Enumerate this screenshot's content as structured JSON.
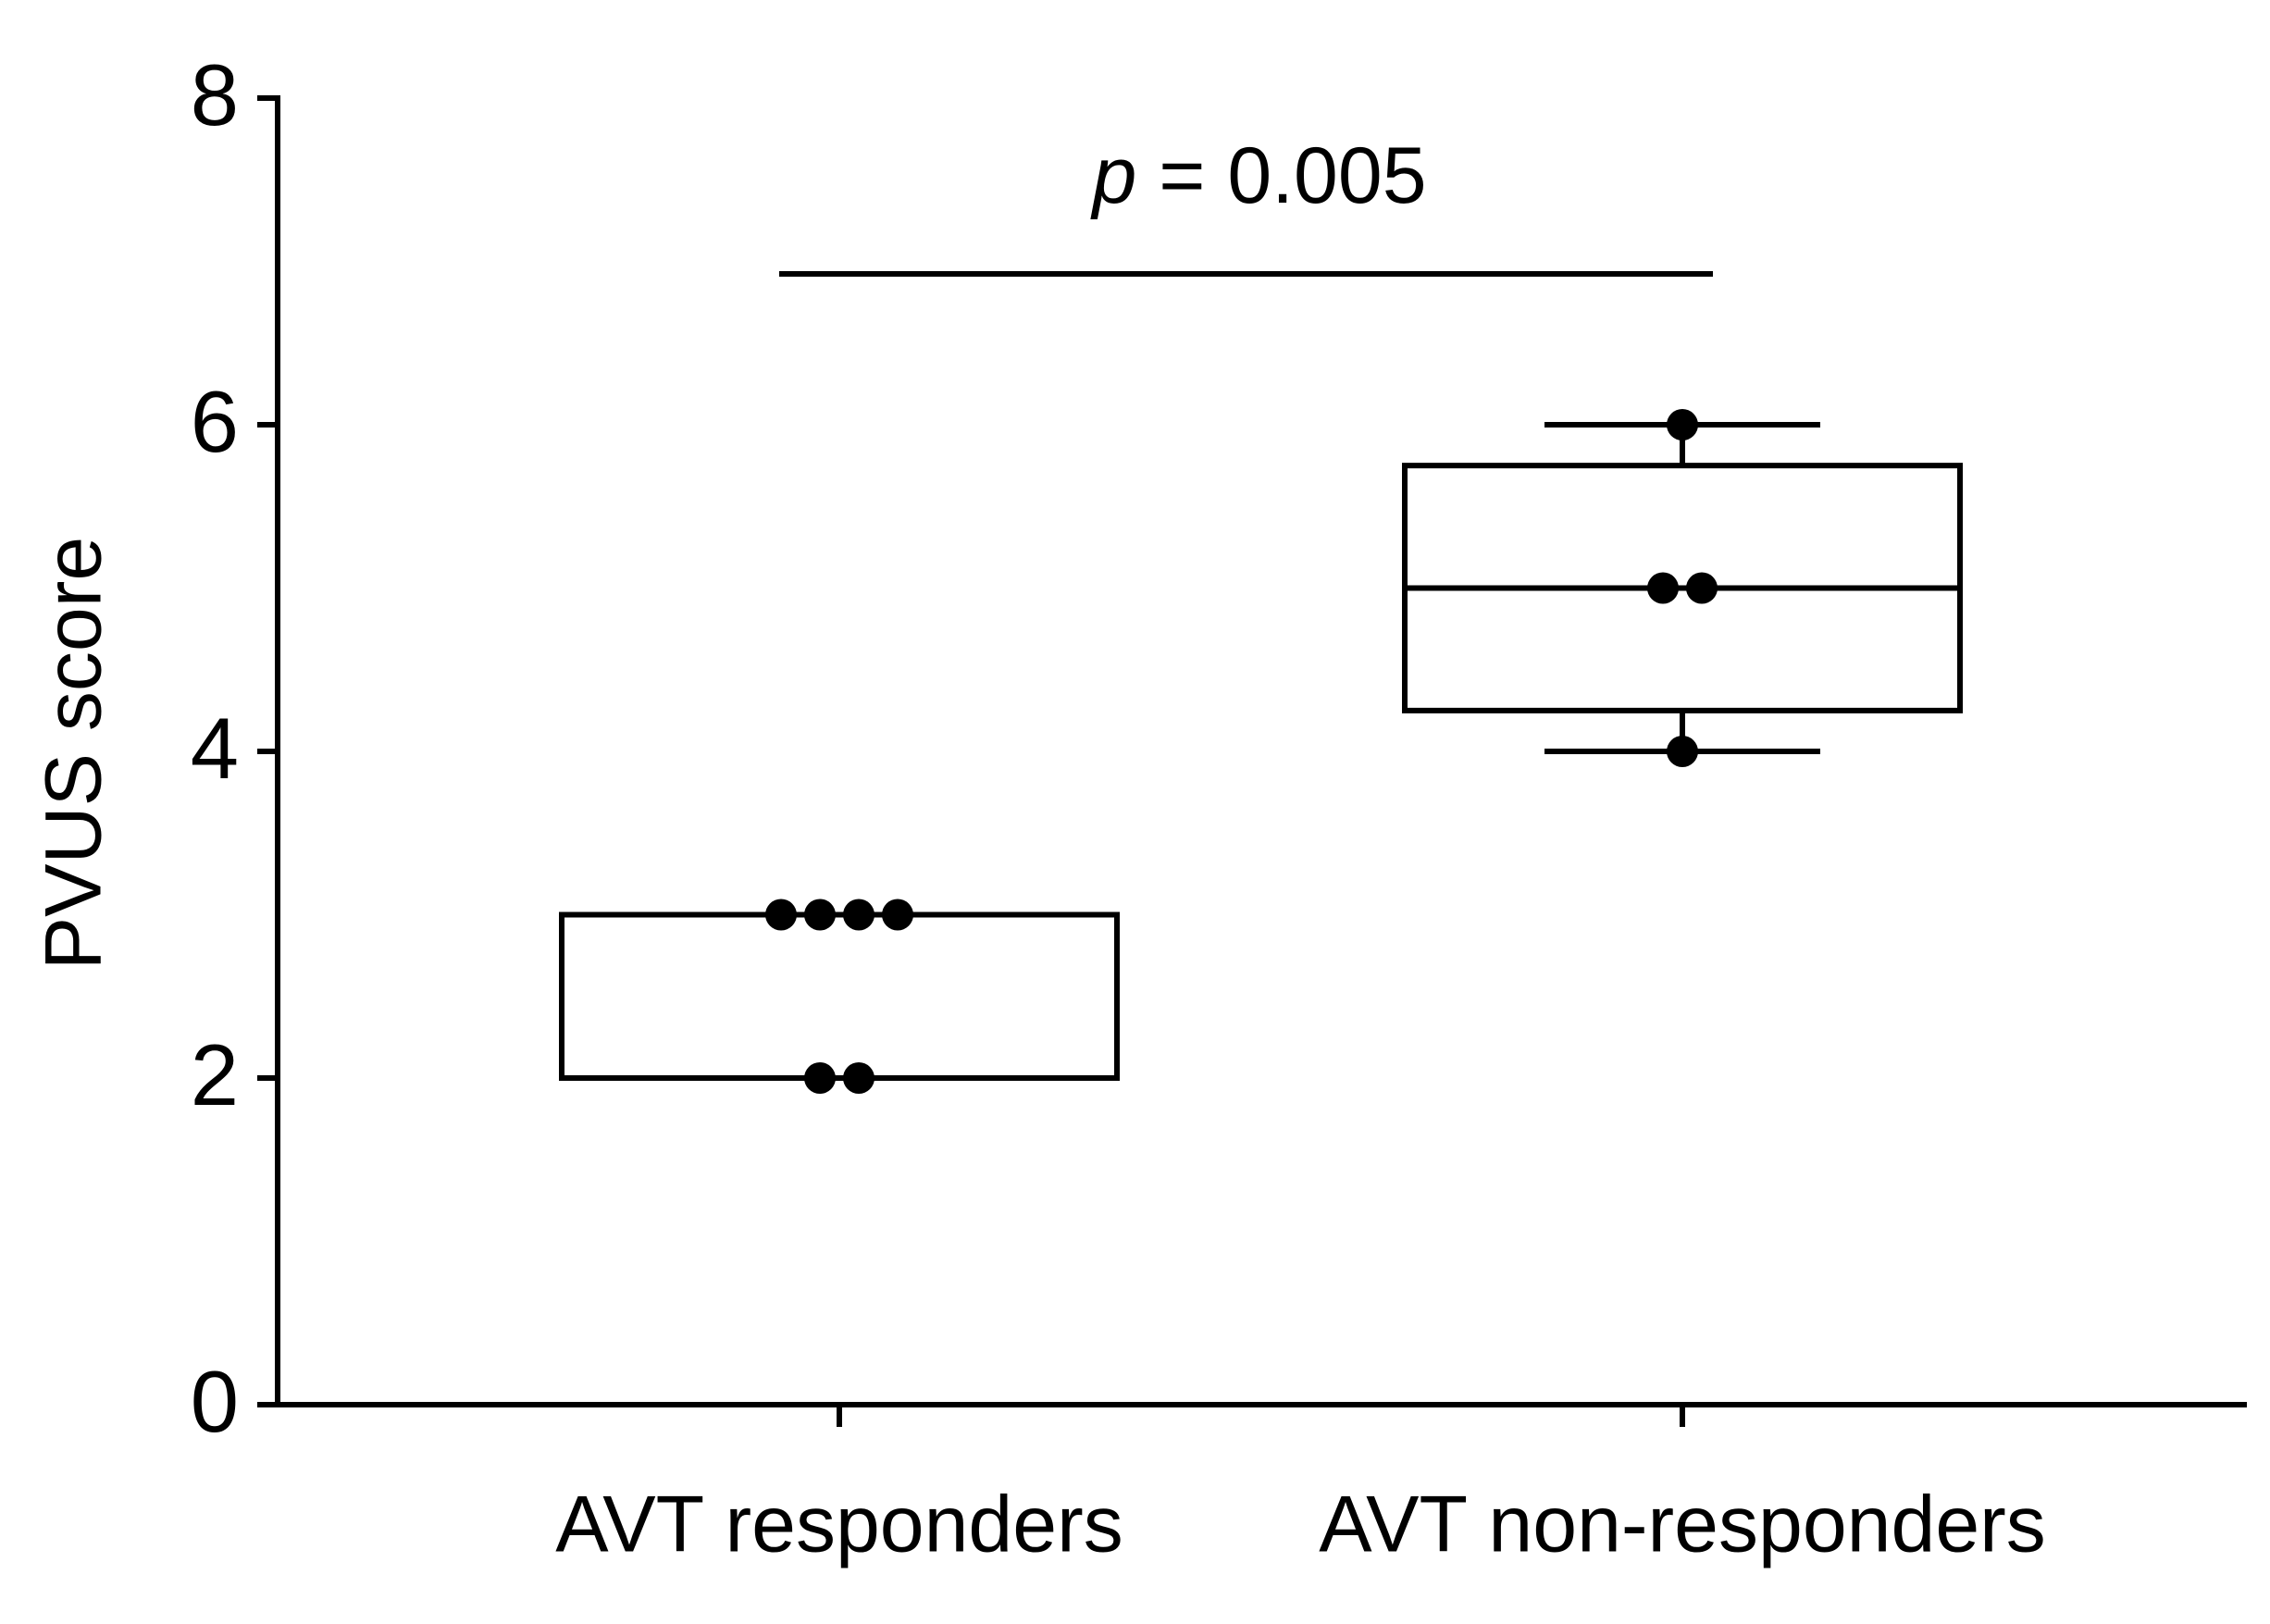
{
  "chart_data": {
    "type": "box",
    "ylabel": "PVUS score",
    "categories": [
      "AVT responders",
      "AVT non-responders"
    ],
    "boxes": [
      {
        "min": 2,
        "q1": 2,
        "median": 3,
        "q3": 3,
        "max": 3,
        "points": [
          3,
          3,
          3,
          3,
          2,
          2
        ]
      },
      {
        "min": 4,
        "q1": 4.25,
        "median": 5,
        "q3": 5.75,
        "max": 6,
        "points": [
          6,
          5,
          5,
          4
        ]
      }
    ],
    "annotation": {
      "symbol": "p",
      "text": "= 0.005"
    },
    "color": "#000000",
    "ylim": [
      0,
      8
    ],
    "yticks": [
      0,
      2,
      4,
      6,
      8
    ],
    "grid": false
  }
}
